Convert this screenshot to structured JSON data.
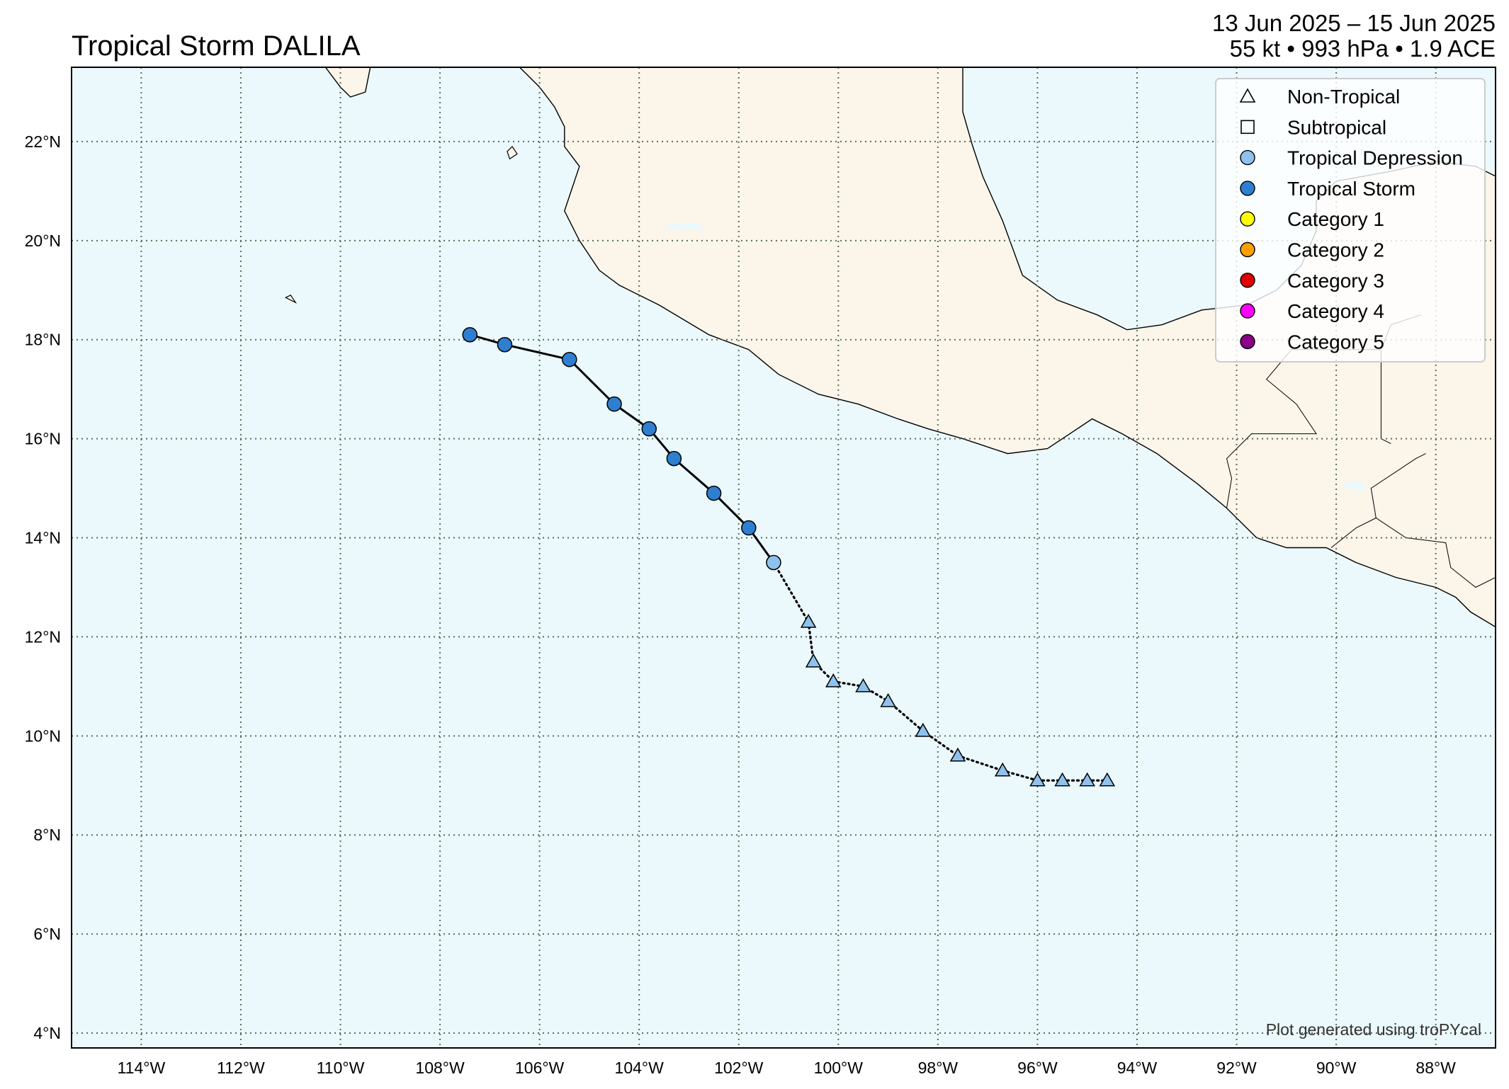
{
  "header": {
    "title": "Tropical Storm DALILA",
    "date_range": "13 Jun 2025 – 15 Jun 2025",
    "stats": "55 kt • 993 hPa • 1.9 ACE"
  },
  "map": {
    "extent": {
      "lon": [
        -115.4,
        -86.8
      ],
      "lat": [
        3.7,
        23.5
      ]
    },
    "ocean_color": "#EBF9FC",
    "land_color": "#FBF5EA",
    "grid": {
      "style": "dotted",
      "lon_step": 2,
      "lat_step": 2
    },
    "lon_ticks": [
      {
        "value": -114,
        "label": "114°W"
      },
      {
        "value": -112,
        "label": "112°W"
      },
      {
        "value": -110,
        "label": "110°W"
      },
      {
        "value": -108,
        "label": "108°W"
      },
      {
        "value": -106,
        "label": "106°W"
      },
      {
        "value": -104,
        "label": "104°W"
      },
      {
        "value": -102,
        "label": "102°W"
      },
      {
        "value": -100,
        "label": "100°W"
      },
      {
        "value": -98,
        "label": "98°W"
      },
      {
        "value": -96,
        "label": "96°W"
      },
      {
        "value": -94,
        "label": "94°W"
      },
      {
        "value": -92,
        "label": "92°W"
      },
      {
        "value": -90,
        "label": "90°W"
      },
      {
        "value": -88,
        "label": "88°W"
      }
    ],
    "lat_ticks": [
      {
        "value": 22,
        "label": "22°N"
      },
      {
        "value": 20,
        "label": "20°N"
      },
      {
        "value": 18,
        "label": "18°N"
      },
      {
        "value": 16,
        "label": "16°N"
      },
      {
        "value": 14,
        "label": "14°N"
      },
      {
        "value": 12,
        "label": "12°N"
      },
      {
        "value": 10,
        "label": "10°N"
      },
      {
        "value": 8,
        "label": "8°N"
      },
      {
        "value": 6,
        "label": "6°N"
      },
      {
        "value": 4,
        "label": "4°N"
      }
    ]
  },
  "land": {
    "coastline": [
      [
        -106.4,
        23.5
      ],
      [
        -106.0,
        23.1
      ],
      [
        -105.7,
        22.7
      ],
      [
        -105.5,
        22.3
      ],
      [
        -105.5,
        21.9
      ],
      [
        -105.2,
        21.5
      ],
      [
        -105.4,
        20.9
      ],
      [
        -105.5,
        20.6
      ],
      [
        -105.2,
        20.0
      ],
      [
        -104.8,
        19.4
      ],
      [
        -104.4,
        19.1
      ],
      [
        -103.6,
        18.7
      ],
      [
        -102.6,
        18.1
      ],
      [
        -101.8,
        17.8
      ],
      [
        -101.2,
        17.3
      ],
      [
        -100.4,
        16.9
      ],
      [
        -99.6,
        16.7
      ],
      [
        -98.8,
        16.4
      ],
      [
        -98.2,
        16.2
      ],
      [
        -97.5,
        16.0
      ],
      [
        -96.6,
        15.7
      ],
      [
        -95.8,
        15.8
      ],
      [
        -95.2,
        16.2
      ],
      [
        -94.9,
        16.4
      ],
      [
        -94.3,
        16.1
      ],
      [
        -93.6,
        15.7
      ],
      [
        -92.8,
        15.1
      ],
      [
        -92.2,
        14.6
      ],
      [
        -91.6,
        14.0
      ],
      [
        -91.0,
        13.8
      ],
      [
        -90.2,
        13.8
      ],
      [
        -89.6,
        13.5
      ],
      [
        -88.8,
        13.2
      ],
      [
        -88.0,
        13.0
      ],
      [
        -87.6,
        12.8
      ],
      [
        -87.3,
        12.5
      ],
      [
        -86.8,
        12.2
      ],
      [
        -86.8,
        23.5
      ]
    ],
    "gulf_coast": [
      [
        -97.5,
        23.5
      ],
      [
        -97.5,
        22.6
      ],
      [
        -97.3,
        21.9
      ],
      [
        -97.1,
        21.3
      ],
      [
        -96.7,
        20.4
      ],
      [
        -96.3,
        19.3
      ],
      [
        -95.6,
        18.8
      ],
      [
        -94.8,
        18.5
      ],
      [
        -94.2,
        18.2
      ],
      [
        -93.5,
        18.3
      ],
      [
        -92.7,
        18.6
      ],
      [
        -91.8,
        18.7
      ],
      [
        -91.2,
        19.0
      ],
      [
        -90.7,
        19.5
      ],
      [
        -90.4,
        20.2
      ],
      [
        -90.4,
        20.8
      ],
      [
        -90.0,
        21.2
      ],
      [
        -88.9,
        21.4
      ],
      [
        -88.0,
        21.6
      ],
      [
        -87.2,
        21.5
      ],
      [
        -86.8,
        21.3
      ]
    ],
    "baja_tip": [
      [
        -110.3,
        23.5
      ],
      [
        -110.0,
        23.1
      ],
      [
        -109.8,
        22.9
      ],
      [
        -109.5,
        23.0
      ],
      [
        -109.4,
        23.5
      ]
    ],
    "borders": [
      [
        [
          -92.2,
          14.6
        ],
        [
          -92.1,
          15.2
        ],
        [
          -92.2,
          15.6
        ],
        [
          -91.7,
          16.1
        ],
        [
          -90.4,
          16.1
        ],
        [
          -90.8,
          16.7
        ],
        [
          -91.4,
          17.2
        ],
        [
          -90.9,
          17.8
        ],
        [
          -89.1,
          17.8
        ],
        [
          -89.1,
          16.0
        ],
        [
          -88.9,
          15.9
        ]
      ],
      [
        [
          -89.1,
          17.8
        ],
        [
          -88.9,
          18.3
        ],
        [
          -88.3,
          18.5
        ]
      ],
      [
        [
          -90.1,
          13.8
        ],
        [
          -89.6,
          14.2
        ],
        [
          -89.2,
          14.4
        ],
        [
          -88.6,
          14.0
        ],
        [
          -87.8,
          13.9
        ],
        [
          -87.7,
          13.4
        ]
      ],
      [
        [
          -89.2,
          14.4
        ],
        [
          -89.3,
          15.0
        ],
        [
          -88.4,
          15.6
        ],
        [
          -88.2,
          15.7
        ]
      ],
      [
        [
          -87.7,
          13.4
        ],
        [
          -87.2,
          13.0
        ],
        [
          -86.8,
          13.2
        ]
      ]
    ],
    "islands": [
      [
        [
          -110.9,
          18.75
        ],
        [
          -111.1,
          18.85
        ],
        [
          -111.0,
          18.9
        ],
        [
          -110.9,
          18.75
        ]
      ],
      [
        [
          -106.6,
          21.65
        ],
        [
          -106.45,
          21.75
        ],
        [
          -106.55,
          21.9
        ],
        [
          -106.65,
          21.8
        ],
        [
          -106.6,
          21.65
        ]
      ]
    ],
    "lakes": [
      [
        [
          -103.5,
          20.25
        ],
        [
          -102.7,
          20.2
        ],
        [
          -102.8,
          20.35
        ],
        [
          -103.4,
          20.35
        ],
        [
          -103.5,
          20.25
        ]
      ],
      [
        [
          -89.9,
          15.0
        ],
        [
          -89.4,
          14.95
        ],
        [
          -89.5,
          15.15
        ],
        [
          -89.85,
          15.1
        ],
        [
          -89.9,
          15.0
        ]
      ]
    ]
  },
  "track": {
    "positions": [
      {
        "lon": -107.4,
        "lat": 18.1,
        "type": "Tropical Storm"
      },
      {
        "lon": -106.7,
        "lat": 17.9,
        "type": "Tropical Storm"
      },
      {
        "lon": -105.4,
        "lat": 17.6,
        "type": "Tropical Storm"
      },
      {
        "lon": -104.5,
        "lat": 16.7,
        "type": "Tropical Storm"
      },
      {
        "lon": -103.8,
        "lat": 16.2,
        "type": "Tropical Storm"
      },
      {
        "lon": -103.3,
        "lat": 15.6,
        "type": "Tropical Storm"
      },
      {
        "lon": -102.5,
        "lat": 14.9,
        "type": "Tropical Storm"
      },
      {
        "lon": -101.8,
        "lat": 14.2,
        "type": "Tropical Storm"
      },
      {
        "lon": -101.3,
        "lat": 13.5,
        "type": "Tropical Depression"
      },
      {
        "lon": -100.6,
        "lat": 12.3,
        "type": "Non-Tropical"
      },
      {
        "lon": -100.5,
        "lat": 11.5,
        "type": "Non-Tropical"
      },
      {
        "lon": -100.1,
        "lat": 11.1,
        "type": "Non-Tropical"
      },
      {
        "lon": -99.5,
        "lat": 11.0,
        "type": "Non-Tropical"
      },
      {
        "lon": -99.0,
        "lat": 10.7,
        "type": "Non-Tropical"
      },
      {
        "lon": -98.3,
        "lat": 10.1,
        "type": "Non-Tropical"
      },
      {
        "lon": -97.6,
        "lat": 9.6,
        "type": "Non-Tropical"
      },
      {
        "lon": -96.7,
        "lat": 9.3,
        "type": "Non-Tropical"
      },
      {
        "lon": -96.0,
        "lat": 9.1,
        "type": "Non-Tropical"
      },
      {
        "lon": -95.5,
        "lat": 9.1,
        "type": "Non-Tropical"
      },
      {
        "lon": -95.0,
        "lat": 9.1,
        "type": "Non-Tropical"
      },
      {
        "lon": -94.6,
        "lat": 9.1,
        "type": "Non-Tropical"
      }
    ]
  },
  "legend": {
    "placement": "top-right",
    "items": [
      {
        "label": "Non-Tropical",
        "marker": "triangle",
        "color": "none"
      },
      {
        "label": "Subtropical",
        "marker": "square",
        "color": "none"
      },
      {
        "label": "Tropical Depression",
        "marker": "circle",
        "color": "#8FC1EE"
      },
      {
        "label": "Tropical Storm",
        "marker": "circle",
        "color": "#2E7FD0"
      },
      {
        "label": "Category 1",
        "marker": "circle",
        "color": "#FFFF00"
      },
      {
        "label": "Category 2",
        "marker": "circle",
        "color": "#FF9E00"
      },
      {
        "label": "Category 3",
        "marker": "circle",
        "color": "#E00000"
      },
      {
        "label": "Category 4",
        "marker": "circle",
        "color": "#FF00FF"
      },
      {
        "label": "Category 5",
        "marker": "circle",
        "color": "#8B0088"
      }
    ]
  },
  "colors": {
    "Tropical Storm": "#2E7FD0",
    "Tropical Depression": "#8FC1EE",
    "Non-Tropical": "#8FC1EE"
  },
  "credit": "Plot generated using troPYcal"
}
